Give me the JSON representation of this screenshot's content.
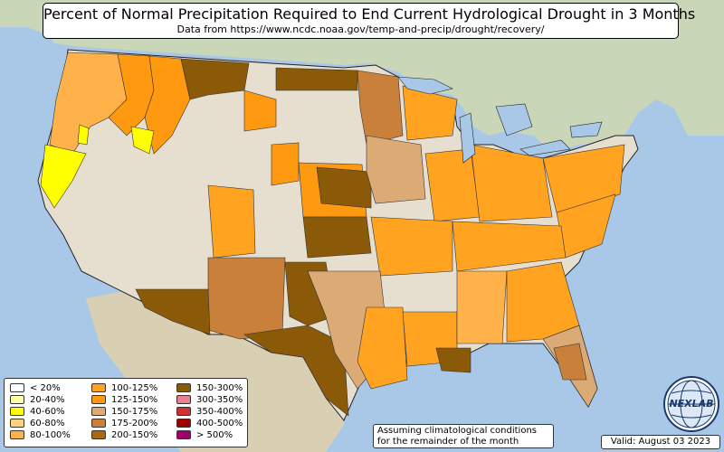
{
  "header": {
    "title": "Percent of Normal Precipitation Required to End Current Hydrological Drought in 3 Months",
    "subtitle": "Data from https://www.ncdc.noaa.gov/temp-and-precip/drought/recovery/"
  },
  "legend": {
    "items": [
      {
        "label": "< 20%",
        "color": "#ffffff"
      },
      {
        "label": "20-40%",
        "color": "#ffffa8"
      },
      {
        "label": "40-60%",
        "color": "#ffff00"
      },
      {
        "label": "60-80%",
        "color": "#ffd27f"
      },
      {
        "label": "80-100%",
        "color": "#ffb24a"
      },
      {
        "label": "100-125%",
        "color": "#ffa321"
      },
      {
        "label": "125-150%",
        "color": "#ff9a10"
      },
      {
        "label": "150-175%",
        "color": "#dcaa74"
      },
      {
        "label": "175-200%",
        "color": "#c8803a"
      },
      {
        "label": "200-150%",
        "color": "#a86a10"
      },
      {
        "label": "150-300%",
        "color": "#8a5a08"
      },
      {
        "label": "300-350%",
        "color": "#e88090"
      },
      {
        "label": "350-400%",
        "color": "#d03030"
      },
      {
        "label": "400-500%",
        "color": "#a00000"
      },
      {
        "label": "> 500%",
        "color": "#a0006a"
      }
    ]
  },
  "note": {
    "line1": "Assuming climatological conditions",
    "line2": "for the remainder of the month"
  },
  "valid": "Valid: August 03 2023",
  "logo": {
    "text": "NEXLAB",
    "icon": "globe-icon"
  },
  "colors": {
    "ocean": "#a9c8e8",
    "land": "#e6dfcf",
    "border": "#222222"
  }
}
